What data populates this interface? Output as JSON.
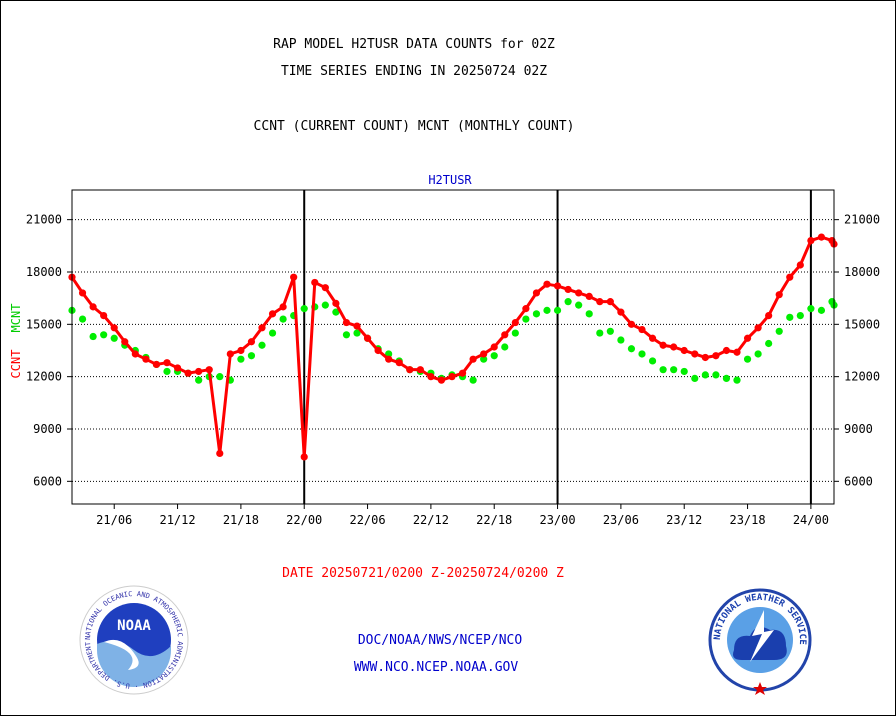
{
  "header": {
    "line1": "RAP MODEL H2TUSR DATA COUNTS for 02Z",
    "line2": "TIME SERIES ENDING IN 20250724 02Z",
    "line3": "CCNT (CURRENT COUNT) MCNT (MONTHLY COUNT)"
  },
  "footer": {
    "date_range": "DATE 20250721/0200 Z-20250724/0200 Z",
    "org_path": "DOC/NOAA/NWS/NCEP/NCO",
    "website": "WWW.NCO.NCEP.NOAA.GOV"
  },
  "logos": {
    "noaa_text": "NOAA",
    "noaa_ring": "NATIONAL OCEANIC AND ATMOSPHERIC ADMINISTRATION · U.S. DEPARTMENT OF COMMERCE ·",
    "nws_ring": "NATIONAL WEATHER SERVICE"
  },
  "colors": {
    "ccnt": "#ff0000",
    "mcnt": "#00ee00",
    "title": "#0000cc"
  },
  "chart_data": {
    "type": "line",
    "title": "H2TUSR",
    "ylabel_left_1": "CCNT",
    "ylabel_left_2": "MCNT",
    "ylim": [
      4700,
      22700
    ],
    "yticks": [
      6000,
      9000,
      12000,
      15000,
      18000,
      21000
    ],
    "xlim": [
      2,
      74
    ],
    "xticks": [
      {
        "x": 6,
        "label": "21/06"
      },
      {
        "x": 12,
        "label": "21/12"
      },
      {
        "x": 18,
        "label": "21/18"
      },
      {
        "x": 24,
        "label": "22/00"
      },
      {
        "x": 30,
        "label": "22/06"
      },
      {
        "x": 36,
        "label": "22/12"
      },
      {
        "x": 42,
        "label": "22/18"
      },
      {
        "x": 48,
        "label": "23/00"
      },
      {
        "x": 54,
        "label": "23/06"
      },
      {
        "x": 60,
        "label": "23/12"
      },
      {
        "x": 66,
        "label": "23/18"
      },
      {
        "x": 72,
        "label": "24/00"
      }
    ],
    "day_lines": [
      24,
      48,
      72
    ],
    "grid": true,
    "series": [
      {
        "name": "CCNT",
        "color": "#ff0000",
        "x": [
          2,
          3,
          4,
          5,
          6,
          7,
          8,
          9,
          10,
          11,
          12,
          13,
          14,
          15,
          16,
          17,
          18,
          19,
          20,
          21,
          22,
          23,
          24,
          25,
          26,
          27,
          28,
          29,
          30,
          31,
          32,
          33,
          34,
          35,
          36,
          37,
          38,
          39,
          40,
          41,
          42,
          43,
          44,
          45,
          46,
          47,
          48,
          49,
          50,
          51,
          52,
          53,
          54,
          55,
          56,
          57,
          58,
          59,
          60,
          61,
          62,
          63,
          64,
          65,
          66,
          67,
          68,
          69,
          70,
          71,
          72,
          73,
          74
        ],
        "values": [
          17700,
          16800,
          16000,
          15500,
          14800,
          14000,
          13300,
          13000,
          12700,
          12800,
          12500,
          12200,
          12300,
          12400,
          7600,
          13300,
          13500,
          14000,
          14800,
          15600,
          16000,
          17700,
          7400,
          17400,
          17100,
          16200,
          15100,
          14900,
          14200,
          13500,
          13000,
          12800,
          12400,
          12400,
          12000,
          11800,
          12000,
          12200,
          13000,
          13300,
          13700,
          14400,
          15100,
          15900,
          16800,
          17300,
          17200,
          17000,
          16800,
          16600,
          16300,
          16300,
          15700,
          15000,
          14700,
          14200,
          13800,
          13700,
          13500,
          13300,
          13100,
          13200,
          13500,
          13400,
          14200,
          14800,
          15500,
          16700,
          17700,
          18400,
          19800,
          20000,
          19800
        ],
        "extra_x": 74.8,
        "extra_value": 19600
      },
      {
        "name": "MCNT",
        "color": "#00ee00",
        "x": [
          2,
          3,
          4,
          5,
          6,
          7,
          8,
          9,
          10,
          11,
          12,
          13,
          14,
          15,
          16,
          17,
          18,
          19,
          20,
          21,
          22,
          23,
          24,
          25,
          26,
          27,
          28,
          29,
          30,
          31,
          32,
          33,
          34,
          35,
          36,
          37,
          38,
          39,
          40,
          41,
          42,
          43,
          44,
          45,
          46,
          47,
          48,
          49,
          50,
          51,
          52,
          53,
          54,
          55,
          56,
          57,
          58,
          59,
          60,
          61,
          62,
          63,
          64,
          65,
          66,
          67,
          68,
          69,
          70,
          71,
          72,
          73,
          74
        ],
        "values": [
          15800,
          15300,
          14300,
          14400,
          14200,
          13800,
          13500,
          13100,
          12700,
          12300,
          12300,
          12200,
          11800,
          12000,
          12000,
          11800,
          13000,
          13200,
          13800,
          14500,
          15300,
          15500,
          15900,
          16000,
          16100,
          15700,
          14400,
          14500,
          14200,
          13600,
          13300,
          12900,
          12400,
          12300,
          12200,
          11900,
          12100,
          12000,
          11800,
          13000,
          13200,
          13700,
          14500,
          15300,
          15600,
          15800,
          15800,
          16300,
          16100,
          15600,
          14500,
          14600,
          14100,
          13600,
          13300,
          12900,
          12400,
          12400,
          12300,
          11900,
          12100,
          12100,
          11900,
          11800,
          13000,
          13300,
          13900,
          14600,
          15400,
          15500,
          15900,
          15800,
          16300
        ],
        "extra_x": 74.8,
        "extra_value": 16100
      }
    ]
  }
}
